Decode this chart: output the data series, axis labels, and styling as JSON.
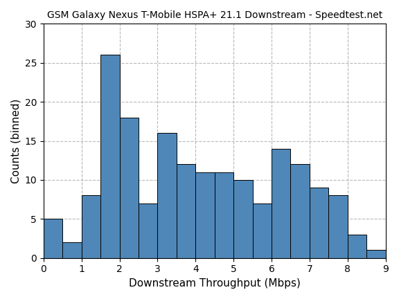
{
  "title": "GSM Galaxy Nexus T-Mobile HSPA+ 21.1 Downstream - Speedtest.net",
  "xlabel": "Downstream Throughput (Mbps)",
  "ylabel": "Counts (binned)",
  "bar_color": "#4f87b8",
  "bar_edgecolor": "#000000",
  "bin_edges": [
    0.0,
    0.5,
    1.0,
    1.5,
    2.0,
    2.5,
    3.0,
    3.5,
    4.0,
    4.5,
    5.0,
    5.5,
    6.0,
    6.5,
    7.0,
    7.5,
    8.0,
    8.5,
    9.0
  ],
  "counts": [
    5,
    2,
    8,
    26,
    18,
    7,
    16,
    12,
    11,
    11,
    10,
    7,
    14,
    12,
    9,
    8,
    3,
    1
  ],
  "xlim": [
    0,
    9
  ],
  "ylim": [
    0,
    30
  ],
  "yticks": [
    0,
    5,
    10,
    15,
    20,
    25,
    30
  ],
  "xticks": [
    0,
    1,
    2,
    3,
    4,
    5,
    6,
    7,
    8,
    9
  ],
  "grid_linestyle": "--",
  "grid_color": "#999999",
  "title_fontsize": 10,
  "label_fontsize": 11,
  "tick_fontsize": 10,
  "linewidth": 0.7
}
